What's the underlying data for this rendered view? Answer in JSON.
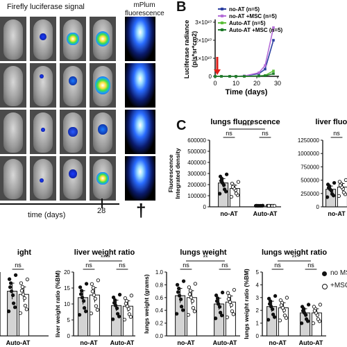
{
  "panel_a": {
    "title": "Firefly luciferase signal",
    "fluor_title_line1": "mPlum",
    "fluor_title_line2": "fluorescence",
    "time_label": "time (days)",
    "day_label": "28",
    "dagger": "†"
  },
  "panel_b": {
    "letter": "B",
    "chart_data": {
      "type": "line",
      "xlabel": "Time (days)",
      "ylabel": "Luciferase radiance (p/s*sr*cm2)",
      "ylabel_line1": "Luciferase radiance",
      "ylabel_line2": "(p/s*sr*cm2)",
      "x_ticks": [
        "0",
        "10",
        "20",
        "30"
      ],
      "y_ticks": [
        "0",
        "1×10¹⁰",
        "2×10¹⁰",
        "3×10¹⁰"
      ],
      "xlim": [
        0,
        30
      ],
      "ylim": [
        0,
        30000000000.0
      ],
      "series": [
        {
          "name": "no-AT (n=5)",
          "color": "#2b3fa0",
          "x": [
            0,
            3,
            7,
            10,
            14,
            21,
            24,
            28
          ],
          "y": [
            0,
            0,
            0,
            0,
            200000000.0,
            1500000000.0,
            4000000000.0,
            20000000000.0
          ]
        },
        {
          "name": "no-AT +MSC (n=5)",
          "color": "#b36cd8",
          "x": [
            0,
            3,
            7,
            10,
            14,
            21,
            24,
            28
          ],
          "y": [
            0,
            0,
            0,
            0,
            200000000.0,
            2000000000.0,
            6000000000.0,
            27000000000.0
          ]
        },
        {
          "name": "Auto-AT (n=5)",
          "color": "#5cbf3a",
          "x": [
            0,
            3,
            7,
            10,
            14,
            21,
            24,
            28
          ],
          "y": [
            0,
            0,
            0,
            0,
            0,
            200000000.0,
            500000000.0,
            3000000000.0
          ]
        },
        {
          "name": "Auto-AT +MSC (n=5)",
          "color": "#1f7a2a",
          "x": [
            0,
            3,
            7,
            10,
            14,
            21,
            24,
            28
          ],
          "y": [
            0,
            0,
            0,
            0,
            0,
            200000000.0,
            300000000.0,
            1500000000.0
          ]
        }
      ]
    }
  },
  "panel_c": {
    "letter": "C",
    "lungs_fluo": {
      "chart_data": {
        "type": "bar",
        "title": "lungs fluorescence",
        "ylabel": "Fluorescence Integrated density",
        "ylabel_line1": "Fluorescence",
        "ylabel_line2": "Integrated density",
        "groups": [
          "no-AT",
          "Auto-AT"
        ],
        "y_ticks": [
          "0",
          "100000",
          "200000",
          "300000",
          "400000",
          "500000",
          "600000"
        ],
        "ylim": [
          0,
          600000
        ],
        "series": [
          {
            "name": "no MSC",
            "values": [
              215000,
              8000
            ]
          },
          {
            "name": "+MSC",
            "values": [
              165000,
              6000
            ]
          }
        ],
        "annotations": [
          "ns",
          "ns",
          "ns",
          "****"
        ]
      }
    },
    "liver_fluo": {
      "chart_data": {
        "type": "bar",
        "title": "liver fluore",
        "groups": [
          "no-AT"
        ],
        "y_ticks": [
          "0",
          "250000",
          "500000",
          "750000",
          "1000000",
          "1250000"
        ],
        "ylim": [
          0,
          1250000
        ],
        "series": [
          {
            "name": "no MSC",
            "values": [
              330000
            ]
          },
          {
            "name": "+MSC",
            "values": [
              370000
            ]
          }
        ],
        "annotations": [
          "ns",
          "***"
        ]
      }
    }
  },
  "panel_d": {
    "first": {
      "chart_data": {
        "type": "bar",
        "title": "ight",
        "groups": [
          "Auto-AT"
        ],
        "series": [
          {
            "name": "no MSC",
            "values": [
              0.7
            ]
          },
          {
            "name": "+MSC",
            "values": [
              0.65
            ]
          }
        ],
        "annotations": [
          "ns"
        ]
      }
    },
    "liver_ratio": {
      "chart_data": {
        "type": "bar",
        "title": "liver weight ratio",
        "ylabel": "liver weight ratio (%BM)",
        "groups": [
          "no-AT",
          "Auto-AT"
        ],
        "y_ticks": [
          "0",
          "5",
          "10",
          "15",
          "20"
        ],
        "ylim": [
          0,
          20
        ],
        "series": [
          {
            "name": "no MSC",
            "values": [
              12.0,
              9.5
            ]
          },
          {
            "name": "+MSC",
            "values": [
              12.8,
              9.3
            ]
          }
        ],
        "annotations": [
          "ns",
          "ns",
          "****"
        ]
      }
    },
    "lungs_weight": {
      "chart_data": {
        "type": "bar",
        "title": "lungs weight",
        "ylabel": "lungs weight (grams)",
        "groups": [
          "no-AT",
          "Auto-AT"
        ],
        "y_ticks": [
          "0.0",
          "0.2",
          "0.4",
          "0.6",
          "0.8",
          "1.0"
        ],
        "ylim": [
          0,
          1.0
        ],
        "series": [
          {
            "name": "no MSC",
            "values": [
              0.63,
              0.5
            ]
          },
          {
            "name": "+MSC",
            "values": [
              0.6,
              0.53
            ]
          }
        ],
        "annotations": [
          "ns",
          "ns",
          "**"
        ]
      }
    },
    "lungs_ratio": {
      "chart_data": {
        "type": "bar",
        "title": "lungs weight ratio",
        "ylabel": "lungs weight ratio (%BM)",
        "groups": [
          "no-AT",
          "Auto-AT"
        ],
        "y_ticks": [
          "0",
          "1",
          "2",
          "3",
          "4",
          "5"
        ],
        "ylim": [
          0,
          5
        ],
        "series": [
          {
            "name": "no MSC",
            "values": [
              2.3,
              1.8
            ]
          },
          {
            "name": "+MSC",
            "values": [
              2.2,
              1.8
            ]
          }
        ],
        "annotations": [
          "ns",
          "ns",
          "**"
        ]
      }
    },
    "legend": [
      "no MS",
      "+MSC"
    ]
  }
}
